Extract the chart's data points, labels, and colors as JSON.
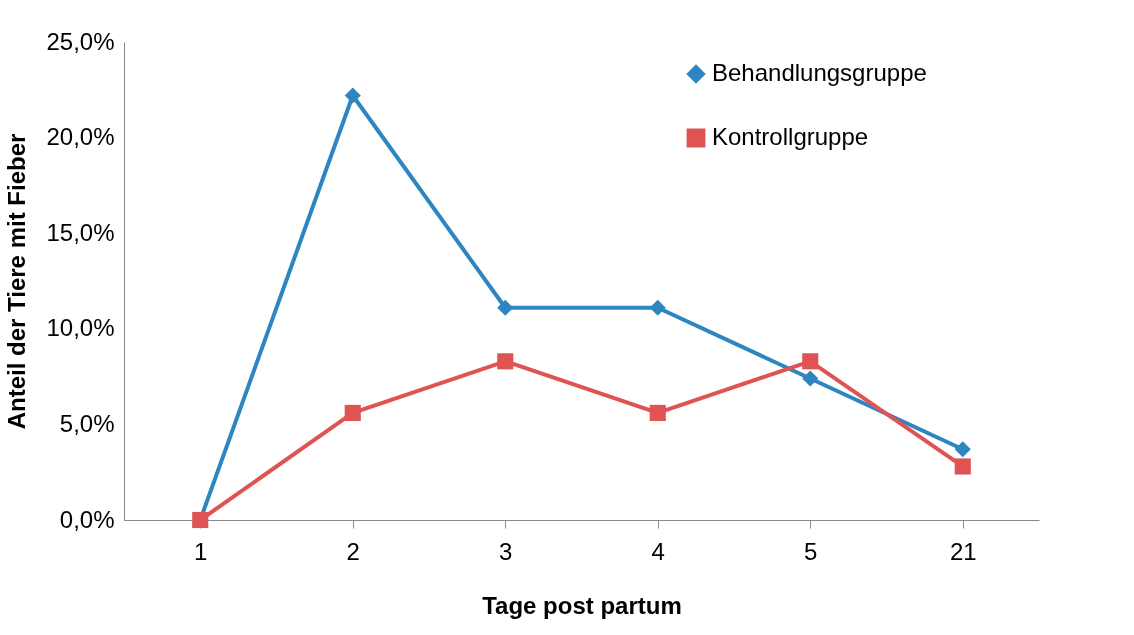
{
  "chart_data": {
    "type": "line",
    "xlabel": "Tage  post partum",
    "ylabel": "Anteil der Tiere mit Fieber",
    "categories": [
      "1",
      "2",
      "3",
      "4",
      "5",
      "21"
    ],
    "series": [
      {
        "name": "Behandlungsgruppe",
        "color": "#2e86c1",
        "marker": "diamond",
        "values": [
          0,
          22.2,
          11.1,
          11.1,
          7.4,
          3.7
        ]
      },
      {
        "name": "Kontrollgruppe",
        "color": "#e05353",
        "marker": "square",
        "values": [
          0,
          5.6,
          8.3,
          5.6,
          8.3,
          2.8
        ]
      }
    ],
    "ylim": [
      0,
      25
    ],
    "yticks": [
      {
        "value": 0,
        "label": "0,0%"
      },
      {
        "value": 5,
        "label": "5,0%"
      },
      {
        "value": 10,
        "label": "10,0%"
      },
      {
        "value": 15,
        "label": "15,0%"
      },
      {
        "value": 20,
        "label": "20,0%"
      },
      {
        "value": 25,
        "label": "25,0%"
      }
    ],
    "grid": false,
    "legend": "top right",
    "line_style": "solid"
  }
}
